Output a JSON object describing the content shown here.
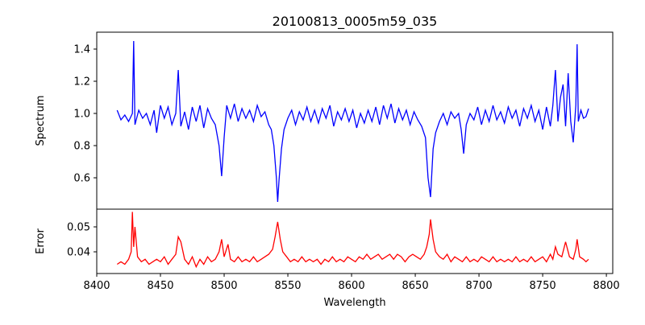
{
  "chart_data": [
    {
      "type": "line",
      "title": "20100813_0005m59_035",
      "xlabel": "",
      "ylabel": "Spectrum",
      "color": "#0000ff",
      "xlim": [
        8400,
        8805
      ],
      "ylim": [
        0.405,
        1.505
      ],
      "yticks": [
        "0.6",
        "0.8",
        "1.0",
        "1.2",
        "1.4"
      ],
      "x": [
        8416,
        8419,
        8422,
        8425,
        8428,
        8429,
        8430,
        8433,
        8436,
        8439,
        8442,
        8445,
        8447,
        8450,
        8453,
        8456,
        8459,
        8462,
        8464,
        8466,
        8469,
        8472,
        8475,
        8478,
        8481,
        8484,
        8487,
        8490,
        8493,
        8496,
        8498,
        8500,
        8502,
        8505,
        8508,
        8511,
        8514,
        8517,
        8520,
        8523,
        8526,
        8529,
        8532,
        8535,
        8537,
        8539,
        8541,
        8542,
        8543,
        8545,
        8547,
        8550,
        8553,
        8556,
        8559,
        8562,
        8565,
        8568,
        8571,
        8574,
        8577,
        8580,
        8583,
        8586,
        8589,
        8592,
        8595,
        8598,
        8601,
        8604,
        8607,
        8610,
        8613,
        8616,
        8619,
        8622,
        8625,
        8628,
        8631,
        8634,
        8637,
        8640,
        8643,
        8646,
        8649,
        8652,
        8655,
        8658,
        8660,
        8662,
        8664,
        8666,
        8669,
        8672,
        8675,
        8678,
        8681,
        8684,
        8686,
        8688,
        8690,
        8693,
        8696,
        8699,
        8702,
        8705,
        8708,
        8711,
        8714,
        8717,
        8720,
        8723,
        8726,
        8729,
        8732,
        8735,
        8738,
        8741,
        8744,
        8747,
        8750,
        8753,
        8756,
        8758,
        8760,
        8762,
        8764,
        8766,
        8768,
        8770,
        8772,
        8774,
        8776,
        8777,
        8778,
        8780,
        8782,
        8784,
        8786
      ],
      "y": [
        1.02,
        0.96,
        0.99,
        0.95,
        1.0,
        1.45,
        0.93,
        1.02,
        0.97,
        1.0,
        0.93,
        1.02,
        0.88,
        1.05,
        0.97,
        1.04,
        0.93,
        1.0,
        1.27,
        0.92,
        1.01,
        0.9,
        1.04,
        0.95,
        1.05,
        0.91,
        1.03,
        0.97,
        0.93,
        0.8,
        0.61,
        0.85,
        1.05,
        0.97,
        1.06,
        0.95,
        1.03,
        0.97,
        1.02,
        0.95,
        1.05,
        0.98,
        1.01,
        0.93,
        0.9,
        0.8,
        0.6,
        0.45,
        0.58,
        0.78,
        0.9,
        0.97,
        1.02,
        0.93,
        1.01,
        0.96,
        1.04,
        0.95,
        1.02,
        0.94,
        1.03,
        0.97,
        1.05,
        0.92,
        1.01,
        0.96,
        1.03,
        0.95,
        1.02,
        0.91,
        1.0,
        0.94,
        1.02,
        0.95,
        1.04,
        0.93,
        1.05,
        0.97,
        1.06,
        0.94,
        1.03,
        0.96,
        1.02,
        0.93,
        1.01,
        0.96,
        0.92,
        0.85,
        0.6,
        0.48,
        0.78,
        0.88,
        0.95,
        1.0,
        0.93,
        1.01,
        0.97,
        1.0,
        0.9,
        0.75,
        0.93,
        1.0,
        0.96,
        1.04,
        0.93,
        1.02,
        0.95,
        1.05,
        0.96,
        1.01,
        0.94,
        1.04,
        0.97,
        1.02,
        0.92,
        1.03,
        0.97,
        1.05,
        0.95,
        1.02,
        0.9,
        1.04,
        0.92,
        1.05,
        1.27,
        0.95,
        1.1,
        1.18,
        0.92,
        1.25,
        0.95,
        0.82,
        1.05,
        1.43,
        0.95,
        1.02,
        0.97,
        0.98,
        1.03
      ]
    },
    {
      "type": "line",
      "title": "",
      "xlabel": "Wavelength",
      "ylabel": "Error",
      "color": "#ff0000",
      "xlim": [
        8400,
        8805
      ],
      "ylim": [
        0.0313,
        0.0571
      ],
      "yticks": [
        "0.04",
        "0.05"
      ],
      "xticks": [
        "8400",
        "8450",
        "8500",
        "8550",
        "8600",
        "8650",
        "8700",
        "8750",
        "8800"
      ],
      "x": [
        8416,
        8419,
        8422,
        8425,
        8427,
        8428,
        8429,
        8430,
        8432,
        8435,
        8438,
        8441,
        8444,
        8447,
        8450,
        8453,
        8456,
        8459,
        8462,
        8464,
        8466,
        8469,
        8472,
        8475,
        8478,
        8481,
        8484,
        8487,
        8490,
        8493,
        8496,
        8498,
        8500,
        8503,
        8505,
        8508,
        8511,
        8514,
        8517,
        8520,
        8523,
        8526,
        8529,
        8532,
        8535,
        8538,
        8540,
        8542,
        8544,
        8546,
        8549,
        8552,
        8555,
        8558,
        8561,
        8564,
        8567,
        8570,
        8573,
        8576,
        8579,
        8582,
        8585,
        8588,
        8591,
        8594,
        8597,
        8600,
        8603,
        8606,
        8609,
        8612,
        8615,
        8618,
        8621,
        8624,
        8627,
        8630,
        8633,
        8636,
        8639,
        8642,
        8645,
        8648,
        8651,
        8654,
        8657,
        8659,
        8661,
        8662,
        8664,
        8666,
        8669,
        8672,
        8675,
        8678,
        8681,
        8684,
        8687,
        8690,
        8693,
        8696,
        8699,
        8702,
        8705,
        8708,
        8711,
        8714,
        8717,
        8720,
        8723,
        8726,
        8729,
        8732,
        8735,
        8738,
        8741,
        8744,
        8747,
        8750,
        8753,
        8756,
        8758,
        8760,
        8762,
        8765,
        8768,
        8771,
        8774,
        8776,
        8777,
        8779,
        8782,
        8784,
        8786
      ],
      "y": [
        0.035,
        0.036,
        0.035,
        0.037,
        0.04,
        0.056,
        0.042,
        0.05,
        0.038,
        0.036,
        0.037,
        0.035,
        0.036,
        0.037,
        0.036,
        0.038,
        0.035,
        0.037,
        0.039,
        0.046,
        0.044,
        0.037,
        0.035,
        0.038,
        0.034,
        0.037,
        0.035,
        0.038,
        0.036,
        0.037,
        0.04,
        0.045,
        0.038,
        0.043,
        0.037,
        0.036,
        0.038,
        0.036,
        0.037,
        0.036,
        0.038,
        0.036,
        0.037,
        0.038,
        0.039,
        0.041,
        0.046,
        0.052,
        0.045,
        0.04,
        0.038,
        0.036,
        0.037,
        0.036,
        0.038,
        0.036,
        0.037,
        0.036,
        0.037,
        0.035,
        0.037,
        0.036,
        0.038,
        0.036,
        0.037,
        0.036,
        0.038,
        0.037,
        0.036,
        0.038,
        0.037,
        0.039,
        0.037,
        0.038,
        0.039,
        0.037,
        0.038,
        0.039,
        0.037,
        0.039,
        0.038,
        0.036,
        0.038,
        0.039,
        0.038,
        0.037,
        0.039,
        0.042,
        0.047,
        0.053,
        0.045,
        0.04,
        0.038,
        0.037,
        0.039,
        0.036,
        0.038,
        0.037,
        0.036,
        0.038,
        0.036,
        0.037,
        0.036,
        0.038,
        0.037,
        0.036,
        0.038,
        0.036,
        0.037,
        0.036,
        0.037,
        0.036,
        0.038,
        0.036,
        0.037,
        0.036,
        0.038,
        0.036,
        0.037,
        0.038,
        0.036,
        0.039,
        0.037,
        0.042,
        0.039,
        0.038,
        0.044,
        0.038,
        0.037,
        0.041,
        0.045,
        0.038,
        0.037,
        0.036,
        0.037
      ]
    }
  ]
}
